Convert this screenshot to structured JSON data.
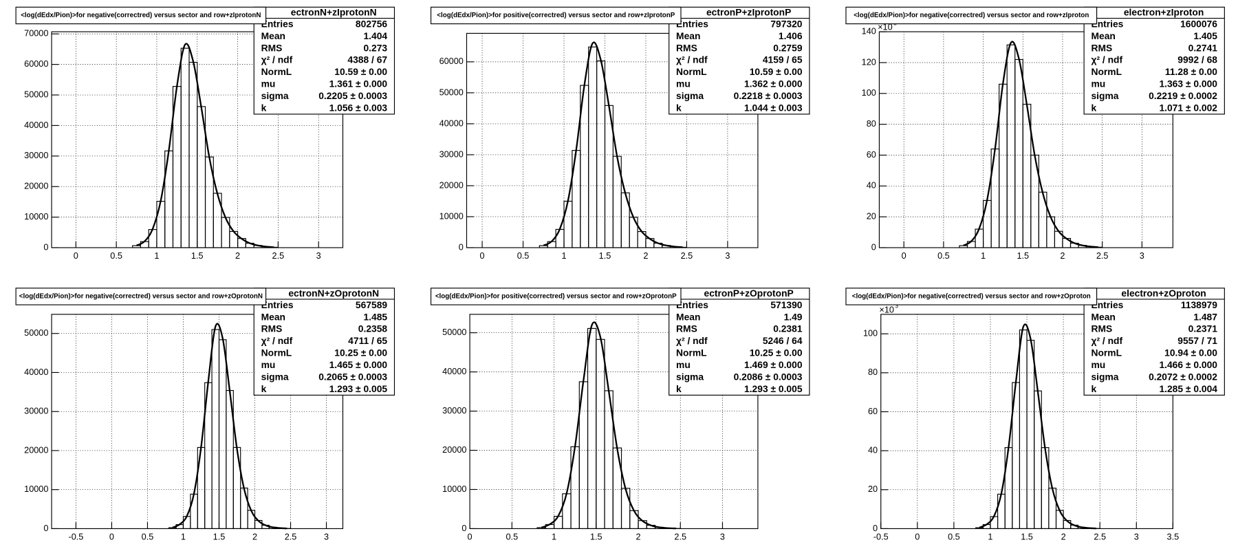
{
  "chart_data": [
    {
      "type": "histogram",
      "title": "<log(dEdx/Pion)>for negative(correctred) versus sector and row+zIprotonN",
      "stats": {
        "name": "ectronN+zIprotonN",
        "rows": [
          {
            "label": "Entries",
            "value": "802756"
          },
          {
            "label": "Mean",
            "value": "1.404"
          },
          {
            "label": "RMS",
            "value": "0.273"
          },
          {
            "label": "χ² / ndf",
            "value": "4388 / 67"
          },
          {
            "label": "NormL",
            "value": "10.59 ± 0.00"
          },
          {
            "label": "mu",
            "value": "1.361 ± 0.000"
          },
          {
            "label": "sigma",
            "value": "0.2205 ± 0.0003"
          },
          {
            "label": "k",
            "value": "1.056 ± 0.003"
          }
        ]
      },
      "bins": [
        0.7,
        0.8,
        0.9,
        1,
        1.1,
        1.2,
        1.3,
        1.4,
        1.5,
        1.6,
        1.7,
        1.8,
        1.9,
        2,
        2.1,
        2.2,
        2.3,
        2.4,
        2.5
      ],
      "counts": [
        660,
        1980,
        5940,
        15180,
        31680,
        52800,
        65300,
        60700,
        46200,
        29700,
        17800,
        9900,
        5300,
        3000,
        1450,
        730,
        330,
        130
      ],
      "fit": {
        "x": [
          0.75,
          0.85,
          0.95,
          1.05,
          1.15,
          1.25,
          1.35,
          1.45,
          1.55,
          1.65,
          1.75,
          1.85,
          1.95,
          2.05,
          2.15,
          2.25,
          2.35,
          2.45
        ],
        "values": [
          700,
          2100,
          6200,
          15500,
          32000,
          53000,
          66500,
          61000,
          46000,
          29500,
          17600,
          9800,
          5300,
          2900,
          1450,
          720,
          330,
          140
        ]
      },
      "xlim": [
        -0.3,
        3.3
      ],
      "ylim": [
        0,
        70700
      ],
      "xticks": [
        0,
        0.5,
        1,
        1.5,
        2,
        2.5,
        3
      ],
      "yticks": [
        0,
        10000,
        20000,
        30000,
        40000,
        50000,
        60000,
        70000
      ],
      "grid": true,
      "color": "#000000"
    },
    {
      "type": "histogram",
      "title": "<log(dEdx/Pion)>for positive(correctred) versus sector and row+zIprotonP",
      "stats": {
        "name": "ectronP+zIprotonP",
        "rows": [
          {
            "label": "Entries",
            "value": "797320"
          },
          {
            "label": "Mean",
            "value": "1.406"
          },
          {
            "label": "RMS",
            "value": "0.2759"
          },
          {
            "label": "χ² / ndf",
            "value": "4159 / 65"
          },
          {
            "label": "NormL",
            "value": "10.59 ± 0.00"
          },
          {
            "label": "mu",
            "value": "1.362 ± 0.000"
          },
          {
            "label": "sigma",
            "value": "0.2218 ± 0.0003"
          },
          {
            "label": "k",
            "value": "1.044 ± 0.003"
          }
        ]
      },
      "bins": [
        0.7,
        0.8,
        0.9,
        1,
        1.1,
        1.2,
        1.3,
        1.4,
        1.5,
        1.6,
        1.7,
        1.8,
        1.9,
        2,
        2.1,
        2.2,
        2.3,
        2.4,
        2.5
      ],
      "counts": [
        650,
        1950,
        5900,
        15000,
        31400,
        52400,
        64800,
        60300,
        45900,
        29500,
        17700,
        9800,
        5200,
        2950,
        1440,
        720,
        330,
        130
      ],
      "fit": {
        "x": [
          0.75,
          0.85,
          0.95,
          1.05,
          1.15,
          1.25,
          1.35,
          1.45,
          1.55,
          1.65,
          1.75,
          1.85,
          1.95,
          2.05,
          2.15,
          2.25,
          2.35,
          2.45
        ],
        "values": [
          690,
          2050,
          6100,
          15300,
          31700,
          52600,
          66000,
          60600,
          45700,
          29300,
          17500,
          9700,
          5200,
          2850,
          1430,
          710,
          330,
          140
        ]
      },
      "xlim": [
        -0.19,
        3.37
      ],
      "ylim": [
        0,
        69200
      ],
      "xticks": [
        0,
        0.5,
        1,
        1.5,
        2,
        2.5,
        3
      ],
      "yticks": [
        0,
        10000,
        20000,
        30000,
        40000,
        50000,
        60000
      ],
      "grid": true,
      "color": "#000000"
    },
    {
      "type": "histogram",
      "title": "<log(dEdx/Pion)>for negative(correctred) versus sector and row+zIproton",
      "stats": {
        "name": "electron+zIproton",
        "rows": [
          {
            "label": "Entries",
            "value": "1600076"
          },
          {
            "label": "Mean",
            "value": "1.405"
          },
          {
            "label": "RMS",
            "value": "0.2741"
          },
          {
            "label": "χ² / ndf",
            "value": "9992 / 68"
          },
          {
            "label": "NormL",
            "value": "11.28 ± 0.00"
          },
          {
            "label": "mu",
            "value": "1.363 ± 0.000"
          },
          {
            "label": "sigma",
            "value": "0.2219 ± 0.0002"
          },
          {
            "label": "k",
            "value": "1.071 ± 0.002"
          }
        ]
      },
      "bins": [
        0.7,
        0.8,
        0.9,
        1,
        1.1,
        1.2,
        1.3,
        1.4,
        1.5,
        1.6,
        1.7,
        1.8,
        1.9,
        2,
        2.1,
        2.2,
        2.3,
        2.4,
        2.5
      ],
      "counts": [
        1.3,
        4,
        12,
        30.6,
        64,
        106,
        131.5,
        122,
        93,
        60,
        36,
        20,
        10.6,
        6,
        2.9,
        1.5,
        0.7,
        0.3
      ],
      "fit": {
        "x": [
          0.75,
          0.85,
          0.95,
          1.05,
          1.15,
          1.25,
          1.35,
          1.45,
          1.55,
          1.65,
          1.75,
          1.85,
          1.95,
          2.05,
          2.15,
          2.25,
          2.35,
          2.45
        ],
        "values": [
          1.4,
          4.2,
          12.5,
          31.3,
          64.5,
          107,
          133,
          122.5,
          92.5,
          59.5,
          35.5,
          19.8,
          10.6,
          5.8,
          2.9,
          1.45,
          0.7,
          0.3
        ]
      },
      "xlim": [
        -0.31,
        3.39
      ],
      "ylim": [
        0,
        140
      ],
      "xticks": [
        0,
        0.5,
        1,
        1.5,
        2,
        2.5,
        3
      ],
      "yticks": [
        0,
        20,
        40,
        60,
        80,
        100,
        120,
        140
      ],
      "y_scale_label": "×10",
      "y_scale_exponent": "3",
      "grid": true,
      "color": "#000000"
    },
    {
      "type": "histogram",
      "title": "<log(dEdx/Pion)>for negative(correctred) versus sector and row+zOprotonN",
      "stats": {
        "name": "ectronN+zOprotonN",
        "rows": [
          {
            "label": "Entries",
            "value": "567589"
          },
          {
            "label": "Mean",
            "value": "1.485"
          },
          {
            "label": "RMS",
            "value": "0.2358"
          },
          {
            "label": "χ² / ndf",
            "value": "4711 / 65"
          },
          {
            "label": "NormL",
            "value": "10.25 ± 0.00"
          },
          {
            "label": "mu",
            "value": "1.465 ± 0.000"
          },
          {
            "label": "sigma",
            "value": "0.2065 ± 0.0003"
          },
          {
            "label": "k",
            "value": "1.293 ± 0.005"
          }
        ]
      },
      "bins": [
        0.8,
        0.9,
        1,
        1.1,
        1.2,
        1.3,
        1.4,
        1.5,
        1.6,
        1.7,
        1.8,
        1.9,
        2,
        2.1,
        2.2,
        2.3,
        2.4,
        2.5
      ],
      "counts": [
        260,
        1040,
        3120,
        8840,
        20800,
        37400,
        51000,
        48400,
        35400,
        20800,
        10400,
        4700,
        2100,
        880,
        360,
        160,
        50
      ],
      "fit": {
        "x": [
          0.85,
          0.95,
          1.05,
          1.15,
          1.25,
          1.35,
          1.45,
          1.55,
          1.65,
          1.75,
          1.85,
          1.95,
          2.05,
          2.15,
          2.25,
          2.35,
          2.45
        ],
        "values": [
          280,
          1100,
          3200,
          9000,
          21000,
          37800,
          51800,
          48800,
          35200,
          20500,
          10200,
          4600,
          2000,
          850,
          350,
          150,
          50
        ]
      },
      "xlim": [
        -0.84,
        3.23
      ],
      "ylim": [
        0,
        54900
      ],
      "xticks": [
        -0.5,
        0,
        0.5,
        1,
        1.5,
        2,
        2.5,
        3
      ],
      "yticks": [
        0,
        10000,
        20000,
        30000,
        40000,
        50000
      ],
      "grid": true,
      "color": "#000000"
    },
    {
      "type": "histogram",
      "title": "<log(dEdx/Pion)>for positive(correctred) versus sector and row+zOprotonP",
      "stats": {
        "name": "ectronP+zOprotonP",
        "rows": [
          {
            "label": "Entries",
            "value": "571390"
          },
          {
            "label": "Mean",
            "value": "1.49"
          },
          {
            "label": "RMS",
            "value": "0.2381"
          },
          {
            "label": "χ² / ndf",
            "value": "5246 / 64"
          },
          {
            "label": "NormL",
            "value": "10.25 ± 0.00"
          },
          {
            "label": "mu",
            "value": "1.469 ± 0.000"
          },
          {
            "label": "sigma",
            "value": "0.2086 ± 0.0003"
          },
          {
            "label": "k",
            "value": "1.293 ± 0.005"
          }
        ]
      },
      "bins": [
        0.8,
        0.9,
        1,
        1.1,
        1.2,
        1.3,
        1.4,
        1.5,
        1.6,
        1.7,
        1.8,
        1.9,
        2,
        2.1,
        2.2,
        2.3,
        2.4,
        2.5
      ],
      "counts": [
        270,
        1050,
        3150,
        8900,
        20900,
        37500,
        51100,
        48300,
        35200,
        20600,
        10300,
        4600,
        2050,
        860,
        350,
        150,
        50
      ],
      "fit": {
        "x": [
          0.85,
          0.95,
          1.05,
          1.15,
          1.25,
          1.35,
          1.45,
          1.55,
          1.65,
          1.75,
          1.85,
          1.95,
          2.05,
          2.15,
          2.25,
          2.35,
          2.45
        ],
        "values": [
          285,
          1110,
          3230,
          9050,
          21100,
          37900,
          52000,
          48900,
          35100,
          20400,
          10100,
          4550,
          1980,
          840,
          345,
          145,
          50
        ]
      },
      "xlim": [
        0,
        3.42
      ],
      "ylim": [
        0,
        54700
      ],
      "xticks": [
        0,
        0.5,
        1,
        1.5,
        2,
        2.5,
        3
      ],
      "yticks": [
        0,
        10000,
        20000,
        30000,
        40000,
        50000
      ],
      "grid": true,
      "color": "#000000"
    },
    {
      "type": "histogram",
      "title": "<log(dEdx/Pion)>for negative(correctred) versus sector and row+zOproton",
      "stats": {
        "name": "electron+zOproton",
        "rows": [
          {
            "label": "Entries",
            "value": "1138979"
          },
          {
            "label": "Mean",
            "value": "1.487"
          },
          {
            "label": "RMS",
            "value": "0.2371"
          },
          {
            "label": "χ² / ndf",
            "value": "9557 / 71"
          },
          {
            "label": "NormL",
            "value": "10.94 ± 0.00"
          },
          {
            "label": "mu",
            "value": "1.466 ± 0.000"
          },
          {
            "label": "sigma",
            "value": "0.2072 ± 0.0002"
          },
          {
            "label": "k",
            "value": "1.285 ± 0.004"
          }
        ]
      },
      "bins": [
        0.8,
        0.9,
        1,
        1.1,
        1.2,
        1.3,
        1.4,
        1.5,
        1.6,
        1.7,
        1.8,
        1.9,
        2,
        2.1,
        2.2,
        2.3,
        2.4,
        2.5
      ],
      "counts": [
        0.5,
        2.1,
        6.2,
        17.7,
        41.6,
        75,
        102,
        96.7,
        70.7,
        41.6,
        20.8,
        9.4,
        4.2,
        1.8,
        0.7,
        0.3,
        0.1
      ],
      "fit": {
        "x": [
          0.85,
          0.95,
          1.05,
          1.15,
          1.25,
          1.35,
          1.45,
          1.55,
          1.65,
          1.75,
          1.85,
          1.95,
          2.05,
          2.15,
          2.25,
          2.35,
          2.45
        ],
        "values": [
          0.55,
          2.2,
          6.4,
          18,
          42,
          75.5,
          103.5,
          97.5,
          70.3,
          41,
          20.4,
          9.2,
          4,
          1.7,
          0.7,
          0.3,
          0.1
        ]
      },
      "xlim": [
        -0.5,
        3.5
      ],
      "ylim": [
        0,
        110
      ],
      "xticks": [
        -0.5,
        0,
        0.5,
        1,
        1.5,
        2,
        2.5,
        3,
        3.5
      ],
      "yticks": [
        0,
        20,
        40,
        60,
        80,
        100
      ],
      "y_scale_label": "×10",
      "y_scale_exponent": "3",
      "grid": true,
      "color": "#000000"
    }
  ]
}
